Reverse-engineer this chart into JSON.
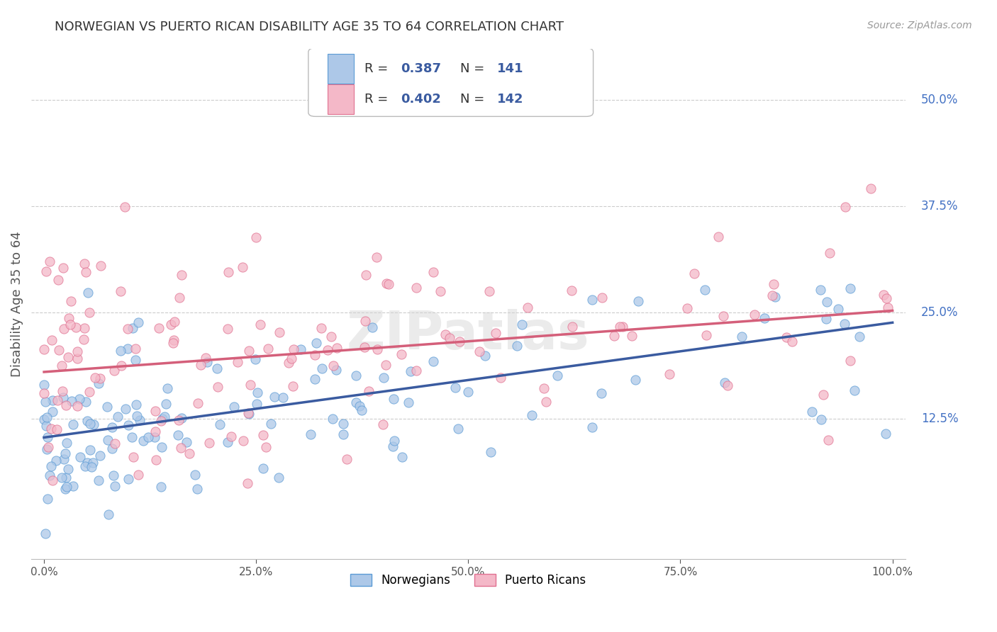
{
  "title": "NORWEGIAN VS PUERTO RICAN DISABILITY AGE 35 TO 64 CORRELATION CHART",
  "source": "Source: ZipAtlas.com",
  "ylabel": "Disability Age 35 to 64",
  "ytick_vals": [
    0.125,
    0.25,
    0.375,
    0.5
  ],
  "ytick_labels": [
    "12.5%",
    "25.0%",
    "37.5%",
    "50.0%"
  ],
  "xlim": [
    -0.015,
    1.015
  ],
  "ylim": [
    -0.04,
    0.56
  ],
  "norwegian_fill": "#adc8e8",
  "norwegian_edge": "#5b9bd5",
  "puerto_rican_fill": "#f4b8c8",
  "puerto_rican_edge": "#e07090",
  "trend_norwegian": "#3a5ba0",
  "trend_puerto_rican": "#d45f7a",
  "R_norwegian": 0.387,
  "N_norwegian": 141,
  "R_puerto_rican": 0.402,
  "N_puerto_rican": 142,
  "legend_labels": [
    "Norwegians",
    "Puerto Ricans"
  ],
  "background_color": "#ffffff",
  "grid_color": "#cccccc",
  "title_color": "#333333",
  "right_label_color": "#4472c4",
  "nor_intercept": 0.103,
  "nor_slope": 0.135,
  "nor_scatter": 0.055,
  "pr_intercept": 0.18,
  "pr_slope": 0.072,
  "pr_scatter": 0.065
}
